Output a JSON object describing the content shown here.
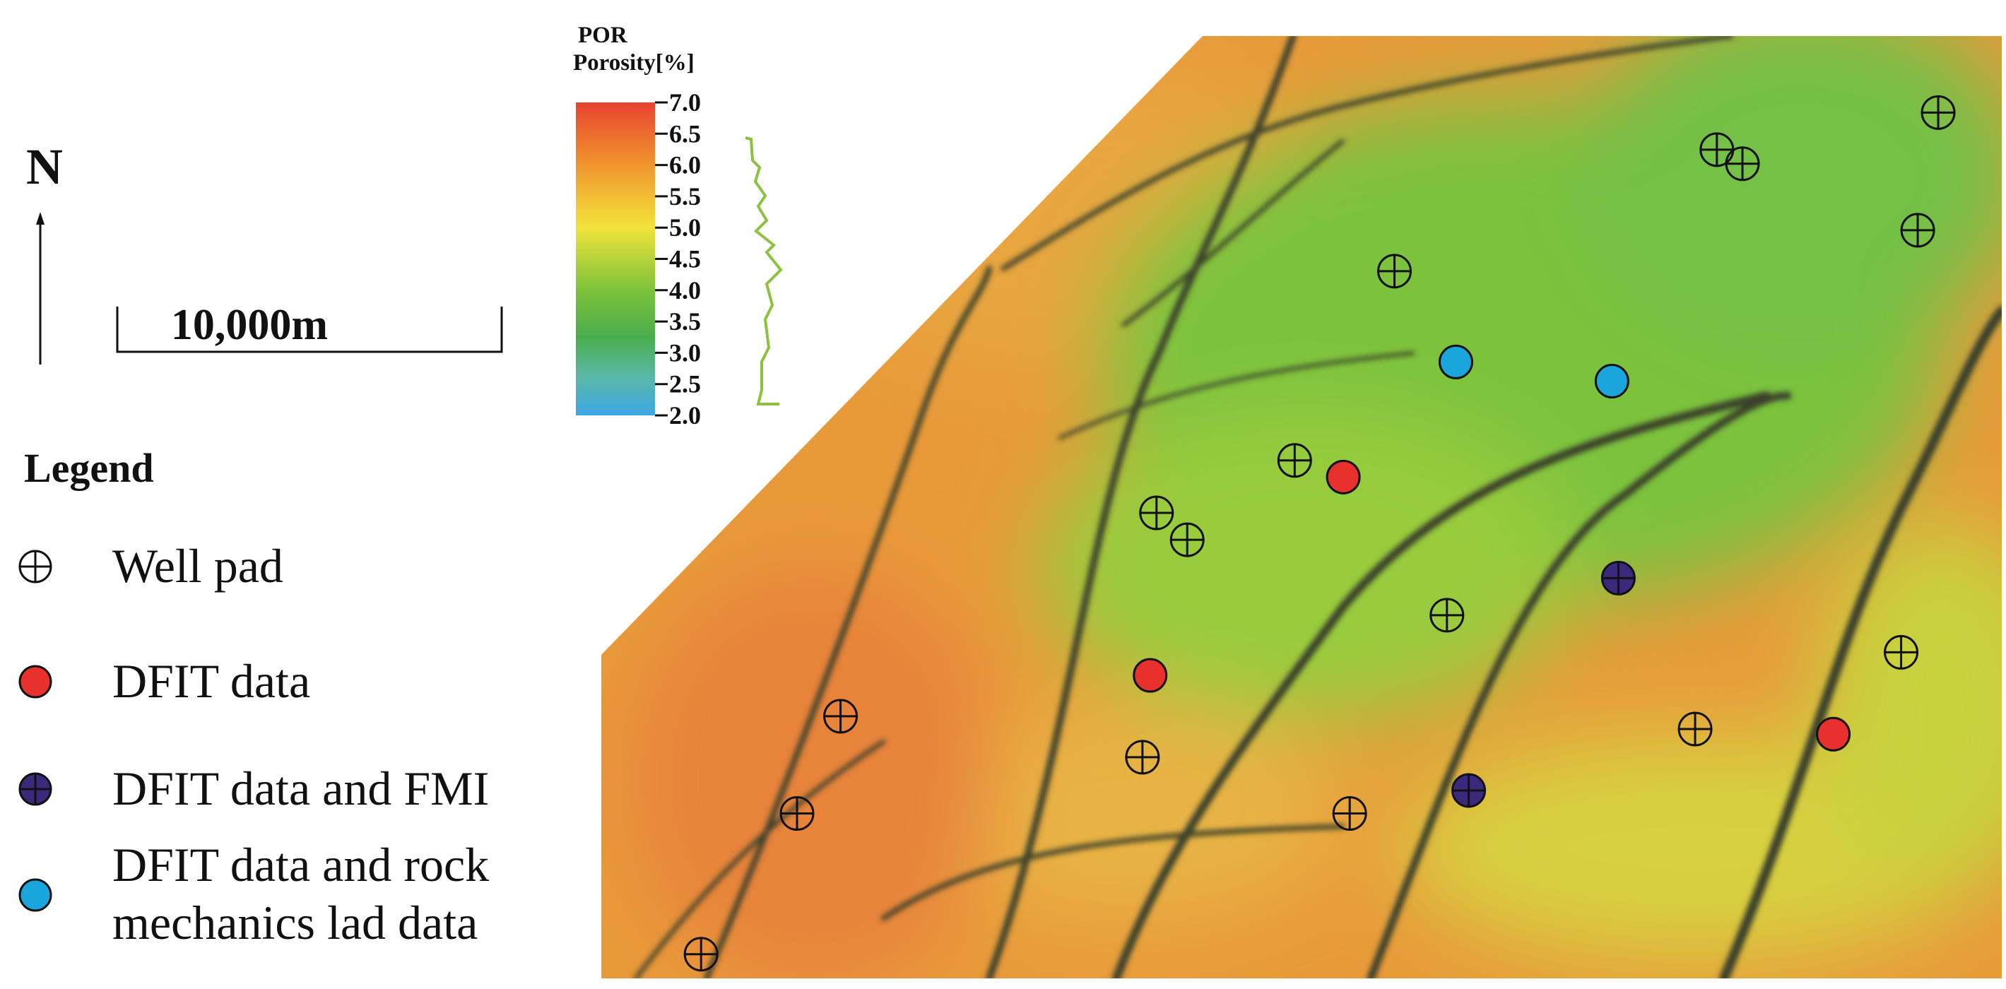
{
  "north": "N",
  "scale_bar": "10,000m",
  "colorbar": {
    "title": "POR",
    "label": "Porosity[%]",
    "range": [
      2,
      7
    ],
    "ticks": [
      {
        "value": 7,
        "label": "7.0"
      },
      {
        "value": 6.5,
        "label": "6.5"
      },
      {
        "value": 6,
        "label": "6.0"
      },
      {
        "value": 5.5,
        "label": "5.5"
      },
      {
        "value": 5,
        "label": "5.0"
      },
      {
        "value": 4.5,
        "label": "4.5"
      },
      {
        "value": 4,
        "label": "4.0"
      },
      {
        "value": 3.5,
        "label": "3.5"
      },
      {
        "value": 3,
        "label": "3.0"
      },
      {
        "value": 2.5,
        "label": "2.5"
      },
      {
        "value": 2,
        "label": "2.0"
      }
    ]
  },
  "legend": {
    "title": "Legend",
    "items": [
      {
        "label": "Well pad"
      },
      {
        "label": "DFIT data"
      },
      {
        "label": "DFIT data and FMI"
      },
      {
        "label": "DFIT data and rock mechanics lad data"
      }
    ]
  }
}
